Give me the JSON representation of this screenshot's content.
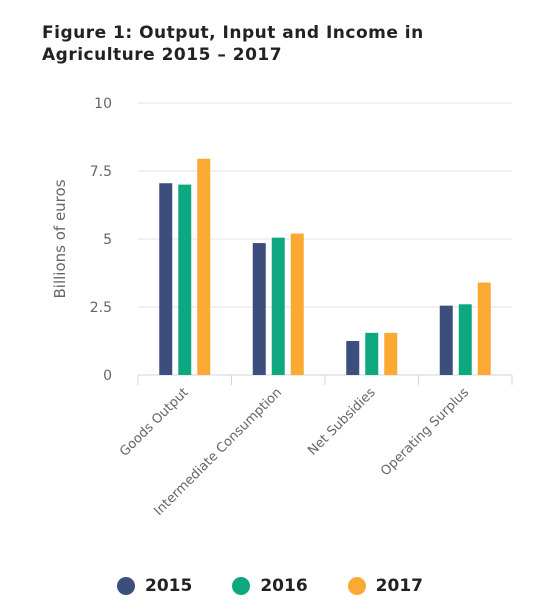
{
  "chart_data": {
    "type": "bar",
    "title": "Figure 1: Output, Input and Income in Agriculture 2015 – 2017",
    "xlabel": "",
    "ylabel": "Billions of euros",
    "ylim": [
      0,
      10
    ],
    "yticks": [
      0,
      2.5,
      5,
      7.5,
      10
    ],
    "ytick_labels": [
      "0",
      "2.5",
      "5",
      "7.5",
      "10"
    ],
    "grid": true,
    "legend_position": "bottom",
    "categories": [
      "Goods Output",
      "Intermediate Consumption",
      "Net Subsidies",
      "Operating Surplus"
    ],
    "series": [
      {
        "name": "2015",
        "color": "#3c4e7c",
        "values": [
          7.05,
          4.85,
          1.25,
          2.55
        ]
      },
      {
        "name": "2016",
        "color": "#0ea880",
        "values": [
          7.0,
          5.05,
          1.55,
          2.6
        ]
      },
      {
        "name": "2017",
        "color": "#fba933",
        "values": [
          7.95,
          5.2,
          1.55,
          3.4
        ]
      }
    ]
  }
}
